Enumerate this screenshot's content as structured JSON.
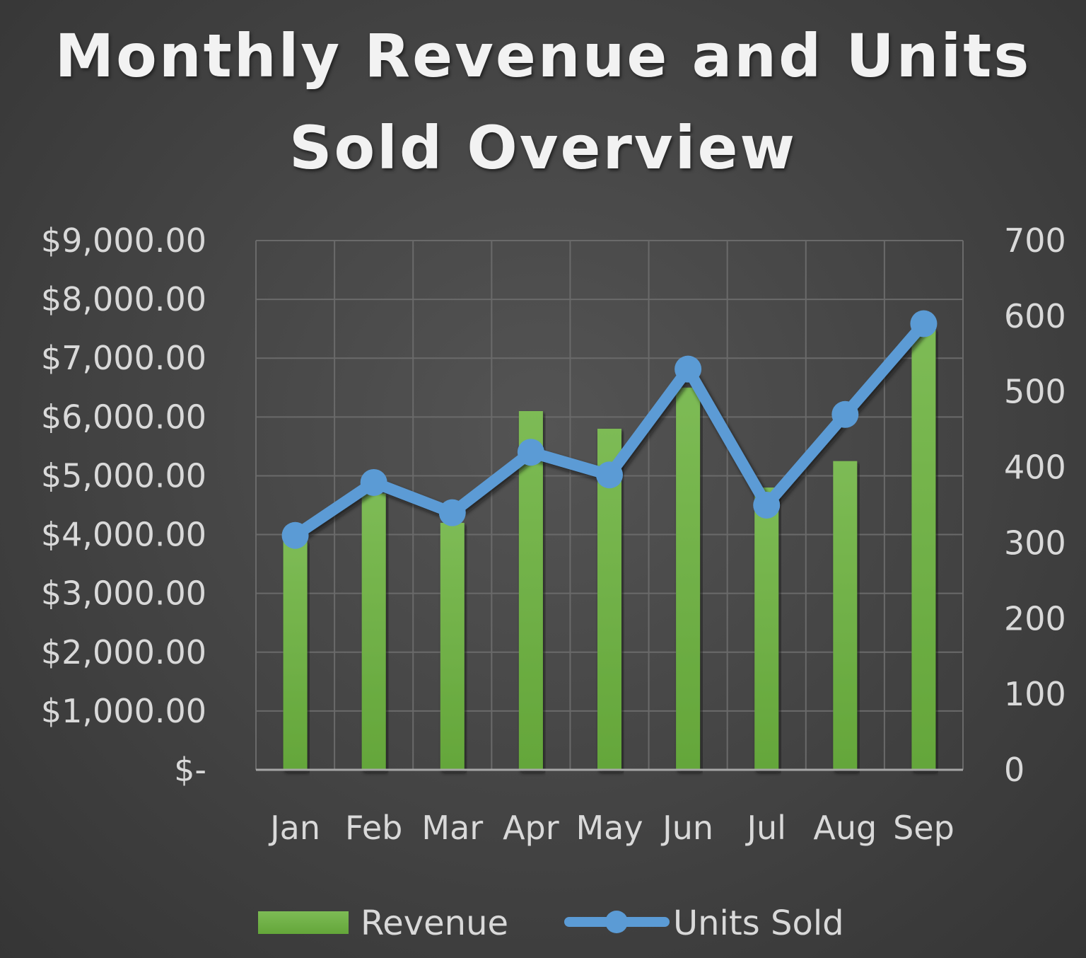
{
  "chart_data": {
    "type": "bar-line-combo",
    "title": "Monthly Revenue and Units Sold Overview",
    "categories": [
      "Jan",
      "Feb",
      "Mar",
      "Apr",
      "May",
      "Jun",
      "Jul",
      "Aug",
      "Sep"
    ],
    "series": [
      {
        "name": "Revenue",
        "type": "bar",
        "axis": "left",
        "color": "#70ad47",
        "values": [
          3900,
          4700,
          4200,
          6100,
          5800,
          6500,
          4800,
          5250,
          7500
        ]
      },
      {
        "name": "Units Sold",
        "type": "line",
        "axis": "right",
        "color": "#5b9bd5",
        "values": [
          310,
          380,
          340,
          420,
          390,
          530,
          350,
          470,
          590
        ]
      }
    ],
    "y_left": {
      "range": [
        0,
        9000
      ],
      "ticks": [
        0,
        1000,
        2000,
        3000,
        4000,
        5000,
        6000,
        7000,
        8000,
        9000
      ],
      "tick_labels": [
        "$-",
        "$1,000.00",
        "$2,000.00",
        "$3,000.00",
        "$4,000.00",
        "$5,000.00",
        "$6,000.00",
        "$7,000.00",
        "$8,000.00",
        "$9,000.00"
      ]
    },
    "y_right": {
      "range": [
        0,
        700
      ],
      "ticks": [
        0,
        100,
        200,
        300,
        400,
        500,
        600,
        700
      ],
      "tick_labels": [
        "0",
        "100",
        "200",
        "300",
        "400",
        "500",
        "600",
        "700"
      ]
    },
    "grid": true,
    "legend": "bottom"
  }
}
